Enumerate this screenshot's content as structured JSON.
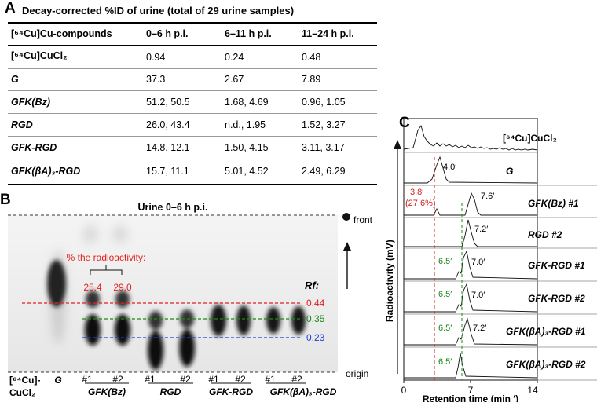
{
  "panel_a": {
    "letter": "A",
    "title": "Decay-corrected %ID of urine (total of 29 urine samples)",
    "headers": [
      "[⁶⁴Cu]Cu-compounds",
      "0–6 h p.i.",
      "6–11 h p.i.",
      "11–24 h p.i."
    ],
    "rows": [
      {
        "compound": "[⁶⁴Cu]CuCl₂",
        "v1": "0.94",
        "v2": "0.24",
        "v3": "0.48"
      },
      {
        "compound": "G",
        "v1": "37.3",
        "v2": "2.67",
        "v3": "7.89"
      },
      {
        "compound": "GFK(Bz)",
        "v1": "51.2, 50.5",
        "v2": "1.68, 4.69",
        "v3": "0.96, 1.05"
      },
      {
        "compound": "RGD",
        "v1": "26.0, 43.4",
        "v2": "n.d., 1.95",
        "v3": "1.52, 3.27"
      },
      {
        "compound": "GFK-RGD",
        "v1": "14.8, 12.1",
        "v2": "1.50, 4.15",
        "v3": "3.11, 3.17"
      },
      {
        "compound": "GFK(βA)₃-RGD",
        "v1": "15.7, 11.1",
        "v2": "5.01, 4.52",
        "v3": "2.49, 6.29"
      }
    ]
  },
  "panel_b": {
    "letter": "B",
    "title": "Urine 0–6 h p.i.",
    "front_label": "front",
    "origin_label": "origin",
    "radioactivity_label": "% the radioactivity:",
    "radioactivity_values": [
      "25.4",
      "29.0"
    ],
    "rf_label": "Rf:",
    "rf_values": [
      "0.44",
      "0.35",
      "0.23"
    ],
    "rf_colors": [
      "#e02020",
      "#1a8a1a",
      "#2040e0"
    ],
    "lane_labels": [
      "#1",
      "#2",
      "#1",
      "#2",
      "#1",
      "#2",
      "#1",
      "#2"
    ],
    "cucl2_label_1": "[⁶⁴Cu]-",
    "cucl2_label_2": "CuCl₂",
    "group_labels": [
      "G",
      "GFK(Bz)",
      "RGD",
      "GFK-RGD",
      "GFK(βA)₃-RGD"
    ]
  },
  "panel_c": {
    "letter": "C",
    "y_axis_label": "Radioactivity (mV)",
    "x_axis_label": "Retention time (min ′)",
    "x_ticks": [
      "0",
      "7",
      "14"
    ],
    "traces": [
      {
        "name": "[⁶⁴Cu]CuCl₂",
        "peak_labels": []
      },
      {
        "name": "G",
        "peak_labels": [
          "4.0′"
        ]
      },
      {
        "name": "GFK(Bz) #1",
        "peak_labels": [
          "7.6′"
        ]
      },
      {
        "name": "RGD #2",
        "peak_labels": [
          "7.2′"
        ]
      },
      {
        "name": "GFK-RGD #1",
        "peak_labels": [
          "6.5′",
          "7.0′"
        ]
      },
      {
        "name": "GFK-RGD #2",
        "peak_labels": [
          "6.5′",
          "7.0′"
        ]
      },
      {
        "name": "GFK(βA)₃-RGD #1",
        "peak_labels": [
          "6.5′",
          "7.2′"
        ]
      },
      {
        "name": "GFK(βA)₃-RGD #2",
        "peak_labels": [
          "6.5′"
        ]
      }
    ],
    "red_annotation_1": "3.8′",
    "red_annotation_2": "(27.6%)",
    "marker_colors": {
      "red": "#d02020",
      "green": "#1a8a1a"
    }
  }
}
